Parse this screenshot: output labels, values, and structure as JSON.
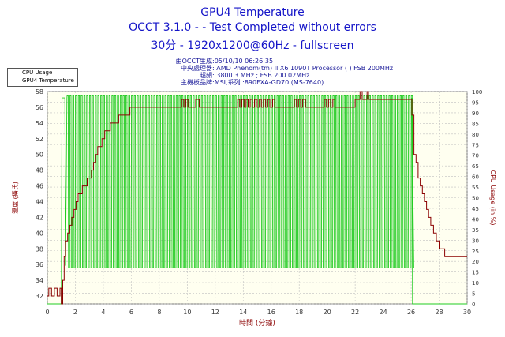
{
  "header": {
    "title": "GPU4 Temperature",
    "line2": "OCCT 3.1.0 -  - Test Completed without errors",
    "line3": "30分 - 1920x1200@60Hz - fullscreen"
  },
  "info": [
    {
      "label": "由OCCT生成",
      "value": ":05/10/10 06:26:35"
    },
    {
      "label": "中央處理器",
      "value": ": AMD Phenom(tm) II X6 1090T Processor (  ) FSB 200MHz"
    },
    {
      "label": "超頻",
      "value": ": 3800.3 MHz ; FSB 200.02MHz"
    },
    {
      "label": "主機板品牌",
      "value": ":MSI,系列 :890FXA-GD70 (MS-7640)"
    }
  ],
  "chart_data": {
    "type": "line",
    "xlabel": "時間 (分鐘)",
    "ylabel_left": "溫度 (攝氏)",
    "ylabel_right": "CPU Usage (in %)",
    "x_range": [
      0,
      30
    ],
    "x_ticks": [
      0,
      2,
      4,
      6,
      8,
      10,
      12,
      14,
      16,
      18,
      20,
      22,
      24,
      26,
      28,
      30
    ],
    "y_left_range": [
      31,
      58
    ],
    "y_left_ticks": [
      32,
      34,
      36,
      38,
      40,
      42,
      44,
      46,
      48,
      50,
      52,
      54,
      56,
      58
    ],
    "y_right_range": [
      0,
      100
    ],
    "y_right_ticks": [
      0,
      5,
      10,
      15,
      20,
      25,
      30,
      35,
      40,
      45,
      50,
      55,
      60,
      65,
      70,
      75,
      80,
      85,
      90,
      95,
      100
    ],
    "grid": true,
    "legend_position": "top-left",
    "series": [
      {
        "name": "CPU Usage",
        "axis": "right",
        "color": "#22cc22",
        "points": [
          [
            0,
            0
          ],
          [
            1.0,
            0
          ],
          [
            1.05,
            97
          ],
          [
            1.25,
            97
          ],
          [
            1.3,
            18
          ],
          [
            1.4,
            97
          ],
          [
            26.05,
            97
          ],
          [
            26.1,
            0
          ],
          [
            30,
            0
          ]
        ],
        "oscillation": {
          "from": 1.4,
          "to": 26.0,
          "period": 0.2,
          "high": 98,
          "low": 17
        }
      },
      {
        "name": "GPU4 Temperature",
        "axis": "left",
        "color": "#8b0000",
        "points": [
          [
            0,
            32
          ],
          [
            0.1,
            33
          ],
          [
            0.3,
            32
          ],
          [
            0.5,
            33
          ],
          [
            0.7,
            32
          ],
          [
            0.9,
            33
          ],
          [
            1.0,
            31
          ],
          [
            1.1,
            34
          ],
          [
            1.2,
            37
          ],
          [
            1.3,
            39
          ],
          [
            1.45,
            40
          ],
          [
            1.6,
            41
          ],
          [
            1.75,
            42
          ],
          [
            1.9,
            43
          ],
          [
            2.05,
            44
          ],
          [
            2.2,
            45
          ],
          [
            2.35,
            45
          ],
          [
            2.5,
            46
          ],
          [
            2.7,
            46
          ],
          [
            2.85,
            47
          ],
          [
            3.0,
            47
          ],
          [
            3.15,
            48
          ],
          [
            3.3,
            49
          ],
          [
            3.45,
            50
          ],
          [
            3.6,
            51
          ],
          [
            3.75,
            51
          ],
          [
            3.9,
            52
          ],
          [
            4.0,
            52
          ],
          [
            4.1,
            53
          ],
          [
            4.3,
            53
          ],
          [
            4.5,
            54
          ],
          [
            4.7,
            54
          ],
          [
            4.9,
            54
          ],
          [
            5.1,
            55
          ],
          [
            5.3,
            55
          ],
          [
            5.5,
            55
          ],
          [
            5.7,
            55
          ],
          [
            5.9,
            56
          ],
          [
            6.1,
            56
          ],
          [
            9.5,
            56
          ],
          [
            9.6,
            57
          ],
          [
            9.75,
            56
          ],
          [
            9.9,
            57
          ],
          [
            10.05,
            56
          ],
          [
            10.5,
            56
          ],
          [
            10.6,
            57
          ],
          [
            10.75,
            57
          ],
          [
            10.85,
            56
          ],
          [
            13.5,
            56
          ],
          [
            13.6,
            57
          ],
          [
            13.75,
            56
          ],
          [
            13.9,
            57
          ],
          [
            14.05,
            56
          ],
          [
            14.2,
            57
          ],
          [
            14.35,
            56
          ],
          [
            14.5,
            57
          ],
          [
            14.65,
            56
          ],
          [
            14.8,
            57
          ],
          [
            15.0,
            56
          ],
          [
            15.15,
            57
          ],
          [
            15.3,
            56
          ],
          [
            15.45,
            57
          ],
          [
            15.6,
            56
          ],
          [
            15.75,
            57
          ],
          [
            15.9,
            56
          ],
          [
            16.1,
            57
          ],
          [
            16.25,
            56
          ],
          [
            17.5,
            56
          ],
          [
            17.65,
            57
          ],
          [
            17.8,
            56
          ],
          [
            17.95,
            57
          ],
          [
            18.1,
            56
          ],
          [
            18.25,
            57
          ],
          [
            18.35,
            57
          ],
          [
            18.45,
            56
          ],
          [
            19.7,
            56
          ],
          [
            19.8,
            57
          ],
          [
            19.95,
            56
          ],
          [
            20.1,
            57
          ],
          [
            20.25,
            56
          ],
          [
            20.4,
            57
          ],
          [
            20.55,
            56
          ],
          [
            22.0,
            57
          ],
          [
            22.2,
            57
          ],
          [
            22.35,
            58
          ],
          [
            22.5,
            57
          ],
          [
            22.7,
            57
          ],
          [
            22.85,
            58
          ],
          [
            22.95,
            57
          ],
          [
            26.0,
            57
          ],
          [
            26.05,
            55
          ],
          [
            26.2,
            50
          ],
          [
            26.35,
            49
          ],
          [
            26.5,
            47
          ],
          [
            26.65,
            46
          ],
          [
            26.8,
            45
          ],
          [
            26.95,
            44
          ],
          [
            27.1,
            43
          ],
          [
            27.25,
            42
          ],
          [
            27.4,
            41
          ],
          [
            27.6,
            40
          ],
          [
            27.8,
            39
          ],
          [
            28.0,
            38
          ],
          [
            28.2,
            38
          ],
          [
            28.4,
            37
          ],
          [
            28.6,
            37
          ],
          [
            29.0,
            37
          ],
          [
            30,
            37
          ]
        ]
      }
    ]
  }
}
